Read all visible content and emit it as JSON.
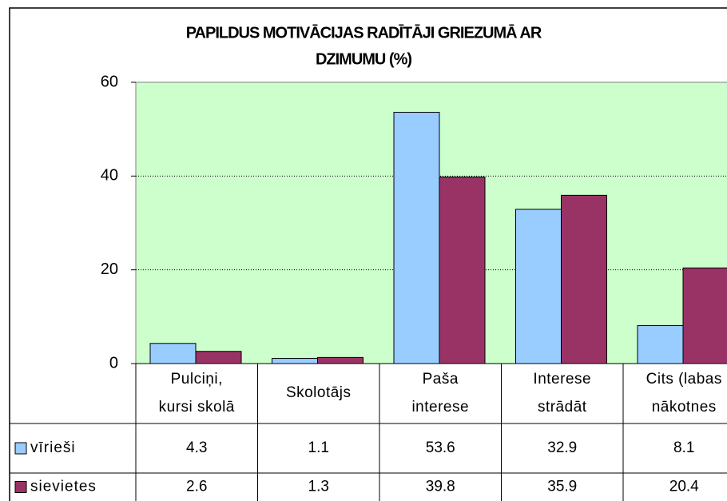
{
  "chart_data": {
    "type": "bar",
    "title": [
      "PAPILDUS MOTIVĀCIJAS RADĪTĀJI GRIEZUMĀ AR",
      "DZIMUMU (%)"
    ],
    "categories": [
      [
        "Pulciņi,",
        "kursi skolā"
      ],
      [
        "Skolotājs"
      ],
      [
        "Paša",
        "interese"
      ],
      [
        "Interese",
        "strādāt"
      ],
      [
        "Cits (labas",
        "nākotnes"
      ]
    ],
    "series": [
      {
        "name": "vīrieši",
        "color": "#99ccff",
        "values": [
          4.3,
          1.1,
          53.6,
          32.9,
          8.1
        ]
      },
      {
        "name": "sievietes",
        "color": "#993366",
        "values": [
          2.6,
          1.3,
          39.8,
          35.9,
          20.4
        ]
      }
    ],
    "ylim": [
      0,
      60
    ],
    "yticks": [
      0,
      20,
      40,
      60
    ],
    "grid": true
  }
}
